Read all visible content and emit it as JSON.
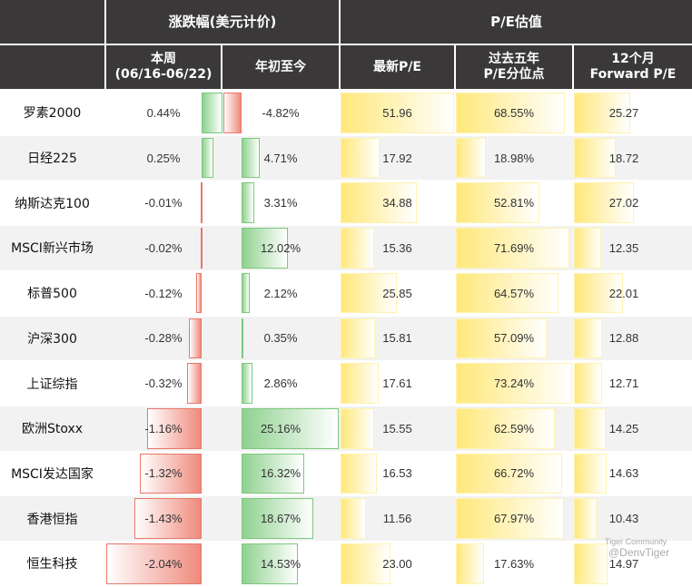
{
  "chart_data": {
    "type": "table",
    "header_groups": [
      "涨跌幅(美元计价)",
      "P/E估值"
    ],
    "columns": [
      {
        "line1": "本周",
        "line2": "(06/16-06/22)"
      },
      {
        "line1": "年初至今",
        "line2": ""
      },
      {
        "line1": "最新P/E",
        "line2": ""
      },
      {
        "line1": "过去五年",
        "line2": "P/E分位点"
      },
      {
        "line1": "12个月",
        "line2": "Forward P/E"
      }
    ],
    "rows": [
      {
        "name": "罗素2000",
        "week": 0.44,
        "ytd": -4.82,
        "pe": 51.96,
        "pct": 68.55,
        "fpe": 25.27
      },
      {
        "name": "日经225",
        "week": 0.25,
        "ytd": 4.71,
        "pe": 17.92,
        "pct": 18.98,
        "fpe": 18.72
      },
      {
        "name": "纳斯达克100",
        "week": -0.01,
        "ytd": 3.31,
        "pe": 34.88,
        "pct": 52.81,
        "fpe": 27.02
      },
      {
        "name": "MSCI新兴市场",
        "week": -0.02,
        "ytd": 12.02,
        "pe": 15.36,
        "pct": 71.69,
        "fpe": 12.35
      },
      {
        "name": "标普500",
        "week": -0.12,
        "ytd": 2.12,
        "pe": 25.85,
        "pct": 64.57,
        "fpe": 22.01
      },
      {
        "name": "沪深300",
        "week": -0.28,
        "ytd": 0.35,
        "pe": 15.81,
        "pct": 57.09,
        "fpe": 12.88
      },
      {
        "name": "上证综指",
        "week": -0.32,
        "ytd": 2.86,
        "pe": 17.61,
        "pct": 73.24,
        "fpe": 12.71
      },
      {
        "name": "欧洲Stoxx",
        "week": -1.16,
        "ytd": 25.16,
        "pe": 15.55,
        "pct": 62.59,
        "fpe": 14.25
      },
      {
        "name": "MSCI发达国家",
        "week": -1.32,
        "ytd": 16.32,
        "pe": 16.53,
        "pct": 66.72,
        "fpe": 14.63
      },
      {
        "name": "香港恒指",
        "week": -1.43,
        "ytd": 18.67,
        "pe": 11.56,
        "pct": 67.97,
        "fpe": 10.43
      },
      {
        "name": "恒生科技",
        "week": -2.04,
        "ytd": 14.53,
        "pe": 23.0,
        "pct": 17.63,
        "fpe": 14.97
      }
    ],
    "colors": {
      "header": "#3a3838",
      "positive": "#8fd18f",
      "negative": "#ef8a7c",
      "pe_bar": "#ffe87a",
      "alt_row": "#f2f2f2"
    }
  },
  "watermark": {
    "line1": "Tiger Community",
    "line2": "@DenvTiger"
  }
}
